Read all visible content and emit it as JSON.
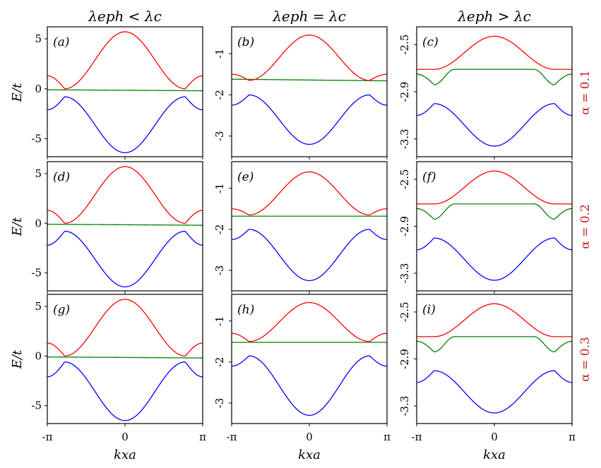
{
  "figure": {
    "column_titles": [
      "λeph < λc",
      "λeph = λc",
      "λeph > λc"
    ],
    "row_labels": [
      "α = 0.1",
      "α = 0.2",
      "α = 0.3"
    ],
    "row_label_color": "#c81e1e",
    "y_label": "E/t",
    "x_label": "kxa",
    "panel_letters": [
      "(a)",
      "(b)",
      "(c)",
      "(d)",
      "(e)",
      "(f)",
      "(g)",
      "(h)",
      "(i)"
    ],
    "x_ticks": [
      "-π",
      "0",
      "π"
    ]
  },
  "colors": {
    "upper": "#ff0000",
    "middle": "#008000",
    "lower": "#0000ff"
  },
  "chart_data": {
    "type": "line",
    "xlabel": "kxa",
    "ylabel": "E/t",
    "xlim": [
      -3.14159,
      3.14159
    ],
    "series_names": [
      "upper",
      "middle",
      "lower"
    ],
    "columns": [
      {
        "title": "λeph < λc",
        "ylim": [
          -6.8,
          6.2
        ],
        "yticks": [
          5,
          0,
          -5
        ],
        "ytick_labels": [
          "5",
          "0",
          "-5"
        ],
        "panels": [
          {
            "label": "(a)",
            "upper": {
              "center": 5.7,
              "edge": 1.3,
              "crossing": 0.0
            },
            "middle": {
              "left": -0.1,
              "right": -0.2
            },
            "lower": {
              "center": -6.4,
              "edge": -2.1,
              "peak": -0.8
            }
          },
          {
            "label": "(d)",
            "upper": {
              "center": 5.7,
              "edge": 1.3,
              "crossing": 0.0
            },
            "middle": {
              "left": -0.1,
              "right": -0.2
            },
            "lower": {
              "center": -6.4,
              "edge": -2.2,
              "peak": -0.8
            }
          },
          {
            "label": "(g)",
            "upper": {
              "center": 5.7,
              "edge": 1.3,
              "crossing": 0.0
            },
            "middle": {
              "left": -0.1,
              "right": -0.2
            },
            "lower": {
              "center": -6.5,
              "edge": -2.1,
              "peak": -0.6
            }
          }
        ]
      },
      {
        "title": "λeph = λc",
        "ylim": [
          -3.5,
          -0.35
        ],
        "yticks": [
          -1,
          -2,
          -3
        ],
        "ytick_labels": [
          "-1",
          "-2",
          "-3"
        ],
        "panels": [
          {
            "label": "(b)",
            "upper": {
              "center": -0.55,
              "edge": -1.5,
              "min": -1.65
            },
            "middle": {
              "left": -1.62,
              "right": -1.66
            },
            "lower": {
              "center": -3.2,
              "edge": -2.25,
              "peak": -2.0
            }
          },
          {
            "label": "(e)",
            "upper": {
              "center": -0.6,
              "edge": -1.5,
              "min": -1.65
            },
            "middle": {
              "left": -1.68,
              "right": -1.68
            },
            "lower": {
              "center": -3.25,
              "edge": -2.25,
              "peak": -2.0
            }
          },
          {
            "label": "(h)",
            "upper": {
              "center": -0.55,
              "edge": -1.3,
              "min": -1.5
            },
            "middle": {
              "left": -1.52,
              "right": -1.52
            },
            "lower": {
              "center": -3.3,
              "edge": -2.1,
              "peak": -1.85
            }
          }
        ]
      },
      {
        "title": "λeph > λc",
        "ylim": [
          -3.45,
          -2.35
        ],
        "yticks": [
          -2.5,
          -2.9,
          -3.3
        ],
        "ytick_labels": [
          "-2.5",
          "-2.9",
          "-3.3"
        ],
        "panels": [
          {
            "label": "(c)",
            "upper": {
              "center": -2.43,
              "edge": -2.71,
              "min": -2.71
            },
            "middle": {
              "center": -2.71,
              "dip": -2.84,
              "edge": -2.75
            },
            "lower": {
              "center": -3.36,
              "edge": -3.1,
              "peak": -3.0
            }
          },
          {
            "label": "(f)",
            "upper": {
              "center": -2.43,
              "edge": -2.71,
              "min": -2.71
            },
            "middle": {
              "center": -2.71,
              "dip": -2.84,
              "edge": -2.75
            },
            "lower": {
              "center": -3.36,
              "edge": -3.1,
              "peak": -3.0
            }
          },
          {
            "label": "(i)",
            "upper": {
              "center": -2.43,
              "edge": -2.71,
              "min": -2.71
            },
            "middle": {
              "center": -2.71,
              "dip": -2.84,
              "edge": -2.75
            },
            "lower": {
              "center": -3.36,
              "edge": -3.1,
              "peak": -3.0
            }
          }
        ]
      }
    ]
  }
}
